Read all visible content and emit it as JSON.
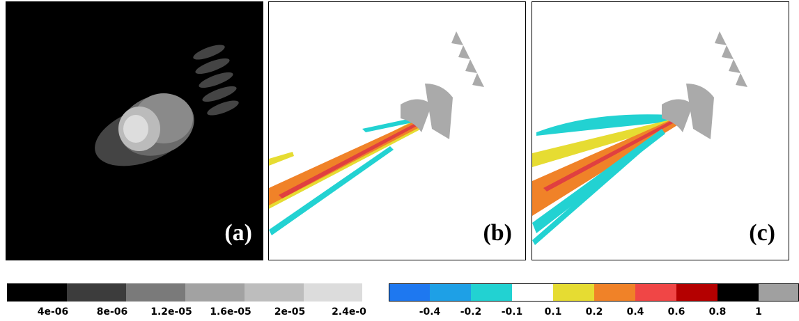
{
  "panels": [
    {
      "label": "(a)"
    },
    {
      "label": "(b)"
    },
    {
      "label": "(c)"
    }
  ],
  "colorbars": [
    {
      "ticks": [
        "4e-06",
        "8e-06",
        "1.2e-05",
        "1.6e-05",
        "2e-05",
        "2.4e-0"
      ]
    },
    {
      "ticks": [
        "-0.4",
        "-0.2",
        "-0.1",
        "0.1",
        "0.2",
        "0.4",
        "0.6",
        "0.8",
        "1"
      ]
    }
  ]
}
